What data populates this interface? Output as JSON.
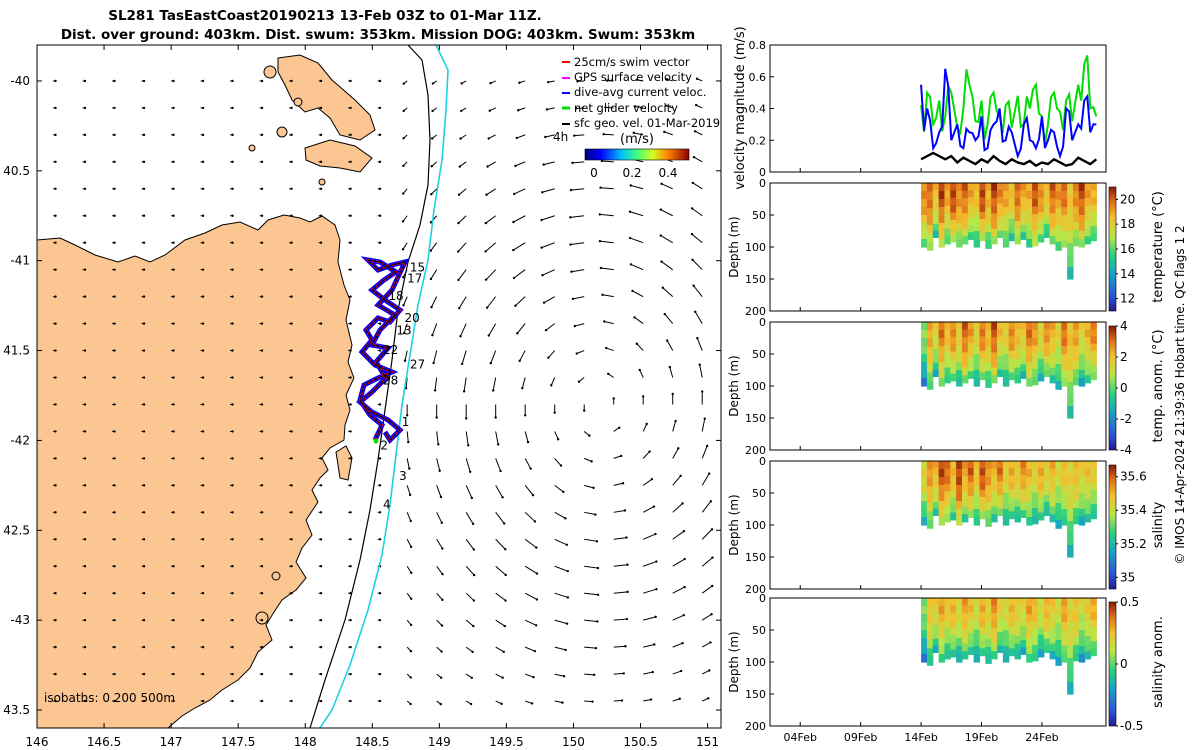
{
  "title": {
    "line1": "SL281 TasEastCoast20190213 13-Feb 03Z to 01-Mar 11Z.",
    "line2": "Dist. over ground: 403km. Dist. swum: 353km. Mission DOG: 403km. Swum: 353km"
  },
  "map": {
    "lon_ticks": [
      "146",
      "146.5",
      "147",
      "147.5",
      "148",
      "148.5",
      "149",
      "149.5",
      "150",
      "150.5",
      "151"
    ],
    "lat_ticks": [
      "-40",
      "40.5",
      "-41",
      "41.5",
      "-42",
      "42.5",
      "-43",
      "43.5"
    ],
    "lon_range": [
      146,
      151.1
    ],
    "lat_range": [
      -43.6,
      -39.8
    ],
    "legend": {
      "items": [
        {
          "label": "25cm/s swim vector",
          "color": "#ff0000"
        },
        {
          "label": "GPS surface velocity",
          "color": "#ff00ff"
        },
        {
          "label": "dive-avg current veloc.",
          "color": "#0000ff"
        },
        {
          "label": "net glider velocity",
          "color": "#00dd00"
        },
        {
          "label": "sfc geo. vel. 01-Mar-2019",
          "color": "#000000"
        }
      ],
      "age_label": "4h",
      "colorbar_title": "(m/s)",
      "colorbar_ticks": [
        "0",
        "0.2",
        "0.4"
      ]
    },
    "isobaths_label": "isobaths: 0   200   500m",
    "day_labels": [
      {
        "text": "1",
        "lon": 148.72,
        "lat": -41.92
      },
      {
        "text": "2",
        "lon": 148.56,
        "lat": -42.05
      },
      {
        "text": "3",
        "lon": 148.7,
        "lat": -42.22
      },
      {
        "text": "4",
        "lon": 148.58,
        "lat": -42.38
      },
      {
        "text": "13",
        "lon": 148.68,
        "lat": -41.41
      },
      {
        "text": "15",
        "lon": 148.78,
        "lat": -41.06
      },
      {
        "text": "17",
        "lon": 148.76,
        "lat": -41.12
      },
      {
        "text": "18",
        "lon": 148.62,
        "lat": -41.22
      },
      {
        "text": "20",
        "lon": 148.74,
        "lat": -41.34
      },
      {
        "text": "22",
        "lon": 148.58,
        "lat": -41.52
      },
      {
        "text": "27",
        "lon": 148.78,
        "lat": -41.6
      },
      {
        "text": "28",
        "lon": 148.58,
        "lat": -41.69
      }
    ]
  },
  "right_panels": {
    "xaxis_ticks": [
      "04Feb",
      "09Feb",
      "14Feb",
      "19Feb",
      "24Feb"
    ],
    "side_label": "© IMOS 14-Apr-2024 21:39:36 Hobart time. QC flags 1  2"
  },
  "chart_data": [
    {
      "type": "line",
      "title": "velocity magnitude",
      "ylabel": "velocity magnitude (m/s)",
      "ylim": [
        0,
        0.8
      ],
      "yticks": [
        "0",
        "0.2",
        "0.4",
        "0.6",
        "0.8"
      ],
      "x_days": [
        14.0,
        14.5,
        15,
        15.5,
        16,
        16.5,
        17,
        17.5,
        18,
        18.5,
        19,
        19.5,
        20,
        20.5,
        21,
        21.5,
        22,
        22.5,
        23,
        23.5,
        24,
        24.5,
        25,
        25.5,
        26,
        26.5,
        27,
        27.5,
        28,
        28.5
      ],
      "series": [
        {
          "name": "net glider velocity",
          "color": "#00dd00",
          "values": [
            0.42,
            0.5,
            0.3,
            0.45,
            0.35,
            0.5,
            0.28,
            0.4,
            0.55,
            0.32,
            0.45,
            0.3,
            0.5,
            0.35,
            0.42,
            0.28,
            0.48,
            0.3,
            0.4,
            0.55,
            0.35,
            0.3,
            0.5,
            0.38,
            0.45,
            0.32,
            0.55,
            0.68,
            0.4,
            0.35
          ]
        },
        {
          "name": "dive-avg current veloc.",
          "color": "#0000ff",
          "values": [
            0.55,
            0.4,
            0.15,
            0.25,
            0.65,
            0.2,
            0.3,
            0.15,
            0.25,
            0.2,
            0.35,
            0.15,
            0.3,
            0.4,
            0.2,
            0.25,
            0.1,
            0.3,
            0.2,
            0.15,
            0.35,
            0.2,
            0.25,
            0.1,
            0.4,
            0.2,
            0.3,
            0.45,
            0.25,
            0.3
          ]
        },
        {
          "name": "sfc geo. vel.",
          "color": "#000000",
          "values": [
            0.08,
            0.1,
            0.12,
            0.1,
            0.08,
            0.1,
            0.06,
            0.09,
            0.07,
            0.05,
            0.08,
            0.06,
            0.1,
            0.07,
            0.05,
            0.08,
            0.06,
            0.05,
            0.07,
            0.04,
            0.06,
            0.05,
            0.08,
            0.06,
            0.04,
            0.05,
            0.09,
            0.07,
            0.05,
            0.08
          ]
        }
      ]
    },
    {
      "type": "heatmap",
      "ylabel": "Depth (m)",
      "colorbar_label": "temperature (°C)",
      "colorbar_ticks": [
        "12",
        "14",
        "16",
        "18",
        "20"
      ],
      "clim": [
        11,
        21
      ],
      "ylim": [
        0,
        200
      ],
      "yticks": [
        "0",
        "50",
        "100",
        "150",
        "200"
      ],
      "day_range": [
        14,
        28.5
      ],
      "profile_depths": [
        100,
        105,
        85,
        100,
        95,
        92,
        100,
        95,
        88,
        100,
        90,
        102,
        95,
        85,
        100,
        90,
        95,
        88,
        100,
        98,
        92,
        85,
        95,
        105,
        100,
        150,
        98,
        100,
        95,
        90
      ],
      "profile_values": [
        19.5,
        20,
        18.5,
        20.5,
        19,
        20.5,
        19.5,
        20,
        19,
        18.5,
        20.5,
        19,
        20.5,
        19.5,
        19,
        18.5,
        20,
        19,
        18.8,
        20.2,
        19.4,
        18.6,
        20,
        19.2,
        19.8,
        18.4,
        19.6,
        20.4,
        19,
        18.8
      ]
    },
    {
      "type": "heatmap",
      "ylabel": "Depth (m)",
      "colorbar_label": "temp. anom. (°C)",
      "colorbar_ticks": [
        "-4",
        "-2",
        "0",
        "2",
        "4"
      ],
      "clim": [
        -4,
        4
      ],
      "ylim": [
        0,
        200
      ],
      "yticks": [
        "0",
        "50",
        "100",
        "150",
        "200"
      ],
      "day_range": [
        14,
        28.5
      ],
      "profile_depths": [
        100,
        105,
        85,
        100,
        95,
        92,
        100,
        95,
        88,
        100,
        90,
        102,
        95,
        85,
        100,
        90,
        95,
        88,
        100,
        98,
        92,
        85,
        95,
        105,
        100,
        150,
        98,
        100,
        95,
        90
      ],
      "profile_values": [
        0.5,
        2.5,
        1.5,
        3,
        2,
        2.8,
        1.8,
        3.2,
        2.5,
        1.5,
        3,
        2.2,
        3.4,
        2,
        1.6,
        2.8,
        2.2,
        1.8,
        3,
        2.5,
        1.6,
        2.8,
        2.2,
        1.5,
        3,
        2,
        2.6,
        1.4,
        2.2,
        2.8
      ]
    },
    {
      "type": "heatmap",
      "ylabel": "Depth (m)",
      "colorbar_label": "salinity",
      "colorbar_ticks": [
        "35",
        "35.2",
        "35.4",
        "35.6"
      ],
      "clim": [
        34.93,
        35.67
      ],
      "ylim": [
        0,
        200
      ],
      "yticks": [
        "0",
        "50",
        "100",
        "150",
        "200"
      ],
      "day_range": [
        14,
        28.5
      ],
      "profile_depths": [
        100,
        105,
        85,
        100,
        95,
        92,
        100,
        95,
        88,
        100,
        90,
        102,
        95,
        85,
        100,
        90,
        95,
        88,
        100,
        98,
        92,
        85,
        95,
        105,
        100,
        150,
        98,
        100,
        95,
        90
      ],
      "profile_values": [
        35.45,
        35.55,
        35.5,
        35.62,
        35.58,
        35.5,
        35.64,
        35.52,
        35.6,
        35.48,
        35.62,
        35.55,
        35.5,
        35.58,
        35.45,
        35.52,
        35.47,
        35.55,
        35.5,
        35.44,
        35.52,
        35.46,
        35.5,
        35.42,
        35.48,
        35.45,
        35.5,
        35.44,
        35.48,
        35.46
      ]
    },
    {
      "type": "heatmap",
      "ylabel": "Depth (m)",
      "colorbar_label": "salinity anom.",
      "colorbar_ticks": [
        "-0.5",
        "0",
        "0.5"
      ],
      "clim": [
        -0.5,
        0.5
      ],
      "ylim": [
        0,
        200
      ],
      "yticks": [
        "0",
        "50",
        "100",
        "150",
        "200"
      ],
      "day_range": [
        14,
        28.5
      ],
      "profile_depths": [
        100,
        105,
        85,
        100,
        95,
        92,
        100,
        95,
        88,
        100,
        90,
        102,
        95,
        85,
        100,
        90,
        95,
        88,
        100,
        98,
        92,
        85,
        95,
        105,
        100,
        150,
        98,
        100,
        95,
        90
      ],
      "profile_values": [
        0.05,
        0.25,
        0.2,
        0.3,
        0.22,
        0.28,
        0.18,
        0.3,
        0.25,
        0.15,
        0.3,
        0.22,
        0.34,
        0.2,
        0.16,
        0.28,
        0.22,
        0.18,
        0.3,
        0.25,
        0.16,
        0.28,
        0.22,
        0.15,
        0.3,
        0.2,
        0.26,
        0.14,
        0.22,
        0.28
      ]
    }
  ]
}
